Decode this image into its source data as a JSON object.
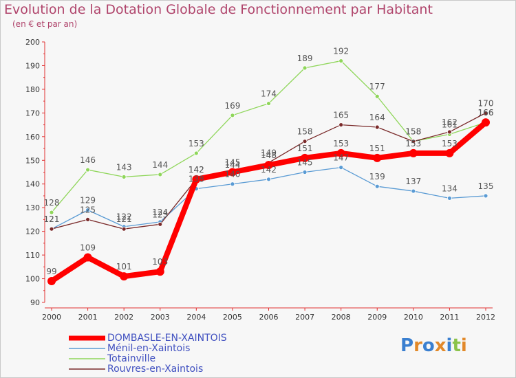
{
  "header": {
    "title": "Evolution de la Dotation Globale de Fonctionnement par Habitant",
    "subtitle": "(en € et par an)"
  },
  "logo": {
    "text": "Proxiti",
    "colors": [
      "#3a7fd0",
      "#e2892a",
      "#3a7fd0",
      "#e2892a",
      "#3a7fd0",
      "#8bc34a",
      "#e2892a"
    ]
  },
  "chart_data": {
    "type": "line",
    "x": [
      "2000",
      "2001",
      "2002",
      "2003",
      "2004",
      "2005",
      "2006",
      "2007",
      "2008",
      "2009",
      "2010",
      "2011",
      "2012"
    ],
    "ylim": [
      90,
      200
    ],
    "yticks": [
      90,
      100,
      110,
      120,
      130,
      140,
      150,
      160,
      170,
      180,
      190,
      200
    ],
    "grid": false,
    "legend_position": "bottom-left",
    "series": [
      {
        "name": "DOMBASLE-EN-XAINTOIS",
        "color": "#ff0000",
        "values": [
          99,
          109,
          101,
          103,
          142,
          145,
          148,
          151,
          153,
          151,
          153,
          153,
          166
        ],
        "labels": [
          "99",
          "109",
          "101",
          "103",
          "142",
          "145",
          "148",
          "151",
          "153",
          "151",
          "153",
          "153",
          "166"
        ]
      },
      {
        "name": "Ménil-en-Xaintois",
        "color": "#5a9bd4",
        "values": [
          121,
          129,
          122,
          124,
          138,
          140,
          142,
          145,
          147,
          139,
          137,
          134,
          135
        ],
        "labels": [
          "121",
          "129",
          "122",
          "124",
          "138",
          "140",
          "142",
          "145",
          "147",
          "139",
          "137",
          "134",
          "135"
        ]
      },
      {
        "name": "Totainville",
        "color": "#8fd65a",
        "values": [
          128,
          146,
          143,
          144,
          153,
          169,
          174,
          189,
          192,
          177,
          158,
          161,
          166
        ],
        "labels": [
          "128",
          "146",
          "143",
          "144",
          "153",
          "169",
          "174",
          "189",
          "192",
          "177",
          "158",
          "161",
          "166"
        ]
      },
      {
        "name": "Rouvres-en-Xaintois",
        "color": "#7a2a2a",
        "values": [
          121,
          125,
          121,
          123,
          142,
          144,
          149,
          158,
          165,
          164,
          158,
          162,
          170
        ],
        "labels": [
          "121",
          "125",
          "121",
          "123",
          "142",
          "144",
          "149",
          "158",
          "165",
          "164",
          "158",
          "162",
          "170"
        ]
      }
    ]
  }
}
